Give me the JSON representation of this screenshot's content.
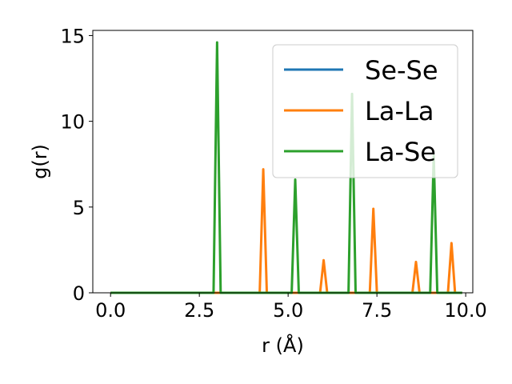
{
  "chart_data": {
    "type": "line",
    "xlabel": "r (Å)",
    "ylabel": "g(r)",
    "xlim": [
      -0.5,
      10.2
    ],
    "ylim": [
      0,
      15.3
    ],
    "xticks": [
      0.0,
      2.5,
      5.0,
      7.5,
      10.0
    ],
    "xtick_labels": [
      "0.0",
      "2.5",
      "5.0",
      "7.5",
      "10.0"
    ],
    "yticks": [
      0,
      5,
      10,
      15
    ],
    "ytick_labels": [
      "0",
      "5",
      "10",
      "15"
    ],
    "legend_position": "upper-right",
    "series": [
      {
        "name": "Se-Se",
        "color": "#1f77b4",
        "x": [
          0.0,
          9.9
        ],
        "y": [
          0,
          0
        ]
      },
      {
        "name": "La-La",
        "color": "#ff7f0e",
        "x": [
          0.0,
          4.2,
          4.3,
          4.4,
          5.9,
          6.0,
          6.1,
          7.3,
          7.4,
          7.5,
          8.5,
          8.6,
          8.7,
          9.5,
          9.6,
          9.7,
          9.9
        ],
        "y": [
          0,
          0,
          7.2,
          0,
          0,
          1.9,
          0,
          0,
          4.9,
          0,
          0,
          1.8,
          0,
          0,
          2.9,
          0,
          0
        ]
      },
      {
        "name": "La-Se",
        "color": "#2ca02c",
        "x": [
          0.0,
          2.9,
          3.0,
          3.1,
          5.1,
          5.2,
          5.3,
          6.7,
          6.8,
          6.9,
          9.0,
          9.1,
          9.2,
          9.9
        ],
        "y": [
          0,
          0,
          14.6,
          0,
          0,
          6.6,
          0,
          0,
          11.6,
          0,
          0,
          8.0,
          0,
          0
        ]
      }
    ]
  }
}
